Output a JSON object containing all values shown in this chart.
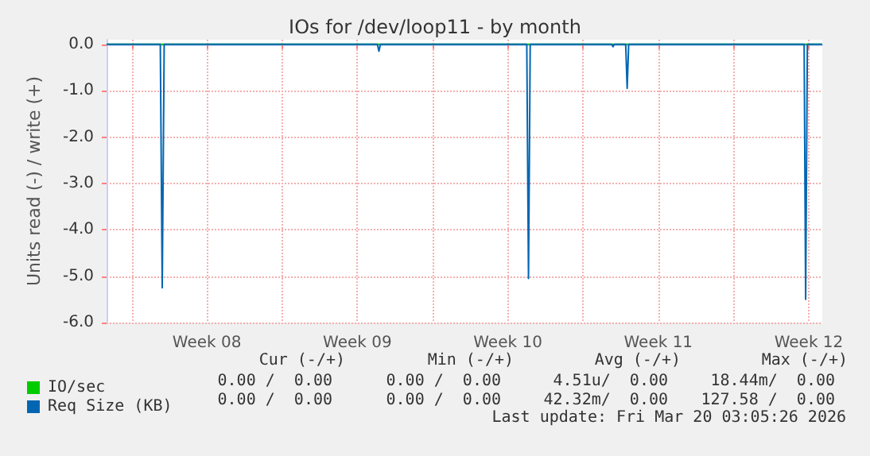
{
  "chart_data": {
    "type": "line",
    "title": "IOs for /dev/loop11 - by month",
    "ylabel": "Units read (-) / write (+)",
    "x": [
      "2026-02-14T20:00",
      "2026-02-17T08:00",
      "2026-02-17T10:10",
      "2026-02-17T12:20",
      "2026-02-27T10:25",
      "2026-02-27T12:05",
      "2026-02-27T13:45",
      "2026-03-06T09:10",
      "2026-03-06T11:05",
      "2026-03-06T13:00",
      "2026-03-10T08:00",
      "2026-03-10T09:25",
      "2026-03-10T10:50",
      "2026-03-10T23:35",
      "2026-03-11T01:15",
      "2026-03-11T02:55",
      "2026-03-19T06:50",
      "2026-03-19T08:30",
      "2026-03-19T10:25",
      "2026-03-20T03:00"
    ],
    "series": [
      {
        "name": "IO/sec",
        "color": "#00cc00",
        "values": [
          0,
          0,
          0,
          0,
          0,
          0,
          0,
          0,
          0,
          0,
          0,
          0,
          0,
          0,
          0,
          0,
          0,
          0,
          0,
          0
        ]
      },
      {
        "name": "Req Size (KB)",
        "color": "#0066b3",
        "values": [
          0,
          0,
          -5.25,
          0,
          0,
          -0.15,
          0,
          0,
          -5.05,
          0,
          0,
          -0.05,
          0,
          0,
          -0.95,
          0,
          0,
          -5.5,
          0,
          0
        ]
      }
    ],
    "xlim": [
      "2026-02-14T20:00",
      "2026-03-20T03:05"
    ],
    "xticks": [
      {
        "value": "2026-02-16",
        "label": null
      },
      {
        "value": "2026-02-19T12:00",
        "label": "Week 08"
      },
      {
        "value": "2026-02-23",
        "label": null
      },
      {
        "value": "2026-02-26T12:00",
        "label": "Week 09"
      },
      {
        "value": "2026-03-02",
        "label": null
      },
      {
        "value": "2026-03-05T12:00",
        "label": "Week 10"
      },
      {
        "value": "2026-03-09",
        "label": null
      },
      {
        "value": "2026-03-12T12:00",
        "label": "Week 11"
      },
      {
        "value": "2026-03-16",
        "label": null
      },
      {
        "value": "2026-03-19T12:00",
        "label": "Week 12"
      }
    ],
    "ylim": [
      -6,
      0.1
    ],
    "yticks": [
      {
        "value": -6,
        "label": "-6.0"
      },
      {
        "value": -5,
        "label": "-5.0"
      },
      {
        "value": -4,
        "label": "-4.0"
      },
      {
        "value": -3,
        "label": "-3.0"
      },
      {
        "value": -2,
        "label": "-2.0"
      },
      {
        "value": -1,
        "label": "-1.0"
      },
      {
        "value": 0,
        "label": "0.0"
      }
    ],
    "grid": true,
    "legend": "bottom left",
    "marker": "none",
    "line_style": "solid",
    "annotations": [
      "Cur (-/+)",
      "Min (-/+)",
      "Avg (-/+)",
      "Max (-/+)",
      "0.00 /  0.00",
      "0.00 /  0.00",
      "4.51u/  0.00",
      "18.44m/  0.00",
      "0.00 /  0.00",
      "0.00 /  0.00",
      "42.32m/  0.00",
      "127.58 /  0.00",
      "Last update: Fri Mar 20 03:05:26 2026"
    ]
  }
}
